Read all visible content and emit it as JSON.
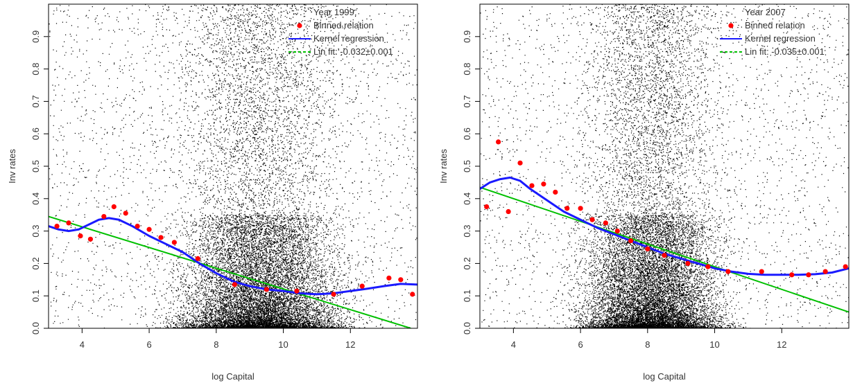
{
  "chart_data": [
    {
      "type": "scatter",
      "title": "",
      "xlabel": "log Capital",
      "ylabel": "Inv rates",
      "xlim": [
        3,
        14
      ],
      "ylim": [
        0,
        1
      ],
      "x_ticks": [
        "4",
        "6",
        "8",
        "10",
        "12"
      ],
      "y_ticks": [
        "0.0",
        "0.1",
        "0.2",
        "0.3",
        "0.4",
        "0.5",
        "0.6",
        "0.7",
        "0.8",
        "0.9"
      ],
      "grid": false,
      "legend_position": "top-right",
      "legend": {
        "header": "Year 1999",
        "items": [
          "Binned relation",
          "Kernel regression",
          "Lin fit: -0.032±0.001"
        ]
      },
      "colors": {
        "scatter": "#000000",
        "binned": "#ff0000",
        "kernel": "#1a1aff",
        "linfit": "#00c000"
      },
      "series": [
        {
          "name": "Binned relation",
          "x": [
            3.25,
            3.6,
            3.95,
            4.25,
            4.65,
            4.95,
            5.3,
            5.65,
            6.0,
            6.35,
            6.75,
            7.45,
            8.55,
            9.5,
            10.4,
            11.5,
            12.35,
            13.15,
            13.5,
            13.85
          ],
          "y": [
            0.315,
            0.325,
            0.285,
            0.275,
            0.345,
            0.375,
            0.355,
            0.315,
            0.305,
            0.28,
            0.265,
            0.215,
            0.135,
            0.12,
            0.115,
            0.105,
            0.13,
            0.155,
            0.15,
            0.105
          ]
        },
        {
          "name": "Kernel regression",
          "x": [
            3.0,
            3.3,
            3.6,
            3.9,
            4.2,
            4.5,
            4.8,
            5.1,
            5.5,
            6.0,
            6.5,
            7.0,
            7.5,
            8.0,
            8.5,
            9.0,
            9.5,
            10.0,
            10.5,
            11.0,
            11.5,
            12.0,
            12.5,
            13.0,
            13.5,
            14.0
          ],
          "y": [
            0.315,
            0.305,
            0.3,
            0.305,
            0.32,
            0.335,
            0.34,
            0.335,
            0.315,
            0.285,
            0.26,
            0.235,
            0.2,
            0.17,
            0.145,
            0.13,
            0.12,
            0.115,
            0.108,
            0.105,
            0.108,
            0.115,
            0.122,
            0.13,
            0.137,
            0.135
          ]
        },
        {
          "name": "Lin fit",
          "x": [
            3.0,
            13.8
          ],
          "y": [
            0.345,
            0.0
          ]
        }
      ]
    },
    {
      "type": "scatter",
      "title": "",
      "xlabel": "log Capital",
      "ylabel": "Inv rates",
      "xlim": [
        3,
        14
      ],
      "ylim": [
        0,
        1
      ],
      "x_ticks": [
        "4",
        "6",
        "8",
        "10",
        "12"
      ],
      "y_ticks": [
        "0.0",
        "0.1",
        "0.2",
        "0.3",
        "0.4",
        "0.5",
        "0.6",
        "0.7",
        "0.8",
        "0.9"
      ],
      "grid": false,
      "legend_position": "top-right",
      "legend": {
        "header": "Year 2007",
        "items": [
          "Binned relation",
          "Kernel regression",
          "Lin fit: -0.035±0.001"
        ]
      },
      "colors": {
        "scatter": "#000000",
        "binned": "#ff0000",
        "kernel": "#1a1aff",
        "linfit": "#00c000"
      },
      "series": [
        {
          "name": "Binned relation",
          "x": [
            3.2,
            3.55,
            3.85,
            4.2,
            4.55,
            4.9,
            5.25,
            5.6,
            6.0,
            6.35,
            6.75,
            7.1,
            7.5,
            8.0,
            8.5,
            9.2,
            9.8,
            10.4,
            11.4,
            12.3,
            12.8,
            13.3,
            13.9
          ],
          "y": [
            0.375,
            0.575,
            0.36,
            0.51,
            0.44,
            0.445,
            0.42,
            0.37,
            0.37,
            0.335,
            0.325,
            0.3,
            0.27,
            0.245,
            0.225,
            0.2,
            0.19,
            0.175,
            0.175,
            0.165,
            0.165,
            0.175,
            0.19
          ]
        },
        {
          "name": "Kernel regression",
          "x": [
            3.0,
            3.3,
            3.6,
            3.9,
            4.2,
            4.5,
            5.0,
            5.5,
            6.0,
            6.5,
            7.0,
            7.5,
            8.0,
            8.5,
            9.0,
            9.5,
            10.0,
            10.5,
            11.0,
            11.5,
            12.0,
            12.5,
            13.0,
            13.5,
            14.0
          ],
          "y": [
            0.43,
            0.45,
            0.46,
            0.465,
            0.455,
            0.43,
            0.395,
            0.36,
            0.335,
            0.31,
            0.29,
            0.27,
            0.25,
            0.23,
            0.215,
            0.2,
            0.185,
            0.175,
            0.168,
            0.165,
            0.165,
            0.165,
            0.167,
            0.172,
            0.185
          ]
        },
        {
          "name": "Lin fit",
          "x": [
            3.0,
            14.0
          ],
          "y": [
            0.435,
            0.05
          ]
        }
      ]
    }
  ]
}
